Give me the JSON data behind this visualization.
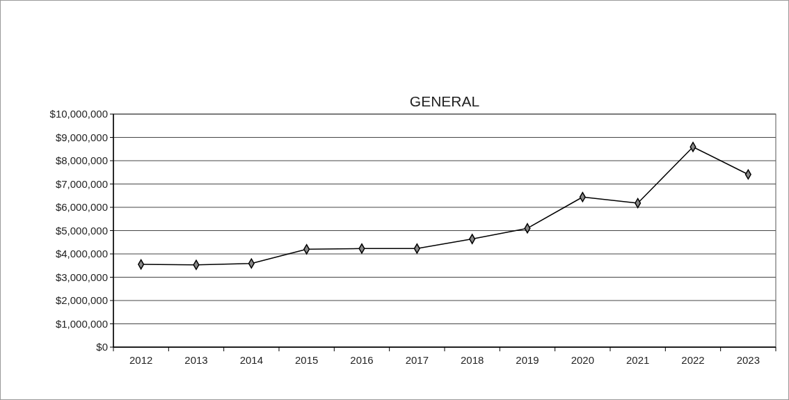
{
  "chart_data": {
    "type": "line",
    "title": "GENERAL",
    "categories": [
      "2012",
      "2013",
      "2014",
      "2015",
      "2016",
      "2017",
      "2018",
      "2019",
      "2020",
      "2021",
      "2022",
      "2023"
    ],
    "series": [
      {
        "color": "#000000",
        "values": [
          3550000,
          3530000,
          3590000,
          4200000,
          4230000,
          4230000,
          4640000,
          5100000,
          6440000,
          6180000,
          8590000,
          7410000
        ]
      }
    ],
    "ylim": [
      0,
      10000000
    ],
    "yticks": [
      {
        "value": 0,
        "label": "$0"
      },
      {
        "value": 1000000,
        "label": "$1,000,000"
      },
      {
        "value": 2000000,
        "label": "$2,000,000"
      },
      {
        "value": 3000000,
        "label": "$3,000,000"
      },
      {
        "value": 4000000,
        "label": "$4,000,000"
      },
      {
        "value": 5000000,
        "label": "$5,000,000"
      },
      {
        "value": 6000000,
        "label": "$6,000,000"
      },
      {
        "value": 7000000,
        "label": "$7,000,000"
      },
      {
        "value": 8000000,
        "label": "$8,000,000"
      },
      {
        "value": 9000000,
        "label": "$9,000,000"
      },
      {
        "value": 10000000,
        "label": "$10,000,000"
      }
    ],
    "grid": "y",
    "marker": "diamond",
    "line_style": "solid"
  }
}
